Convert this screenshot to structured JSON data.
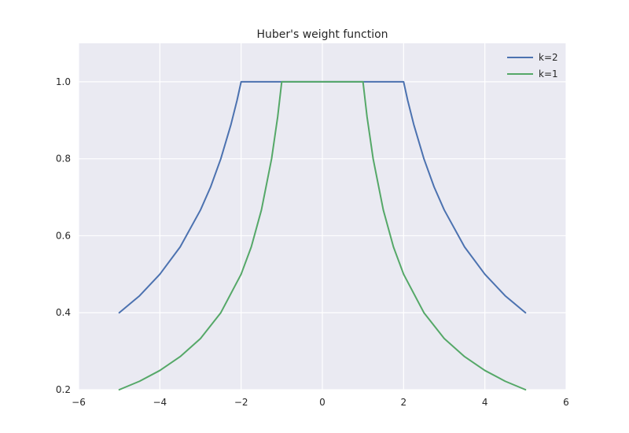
{
  "chart_data": {
    "type": "line",
    "title": "Huber's weight function",
    "xlabel": "",
    "ylabel": "",
    "xlim": [
      -6,
      6
    ],
    "ylim": [
      0.2,
      1.1
    ],
    "xticks": [
      -6,
      -4,
      -2,
      0,
      2,
      4,
      6
    ],
    "xtick_labels": [
      "−6",
      "−4",
      "−2",
      "0",
      "2",
      "4",
      "6"
    ],
    "yticks": [
      0.2,
      0.4,
      0.6,
      0.8,
      1.0
    ],
    "ytick_labels": [
      "0.2",
      "0.4",
      "0.6",
      "0.8",
      "1.0"
    ],
    "grid": true,
    "legend_position": "top-right",
    "series": [
      {
        "name": "k=2",
        "color": "#4c72b0",
        "k": 2,
        "x": [
          -5.0,
          -4.5,
          -4.0,
          -3.5,
          -3.0,
          -2.75,
          -2.5,
          -2.25,
          -2.1,
          -2.0,
          0.0,
          2.0,
          2.1,
          2.25,
          2.5,
          2.75,
          3.0,
          3.5,
          4.0,
          4.5,
          5.0
        ],
        "y": [
          0.4,
          0.444,
          0.5,
          0.571,
          0.667,
          0.727,
          0.8,
          0.889,
          0.952,
          1.0,
          1.0,
          1.0,
          0.952,
          0.889,
          0.8,
          0.727,
          0.667,
          0.571,
          0.5,
          0.444,
          0.4
        ]
      },
      {
        "name": "k=1",
        "color": "#55a868",
        "k": 1,
        "x": [
          -5.0,
          -4.5,
          -4.0,
          -3.5,
          -3.0,
          -2.5,
          -2.0,
          -1.75,
          -1.5,
          -1.25,
          -1.1,
          -1.0,
          0.0,
          1.0,
          1.1,
          1.25,
          1.5,
          1.75,
          2.0,
          2.5,
          3.0,
          3.5,
          4.0,
          4.5,
          5.0
        ],
        "y": [
          0.2,
          0.222,
          0.25,
          0.286,
          0.333,
          0.4,
          0.5,
          0.571,
          0.667,
          0.8,
          0.909,
          1.0,
          1.0,
          1.0,
          0.909,
          0.8,
          0.667,
          0.571,
          0.5,
          0.4,
          0.333,
          0.286,
          0.25,
          0.222,
          0.2
        ]
      }
    ]
  }
}
